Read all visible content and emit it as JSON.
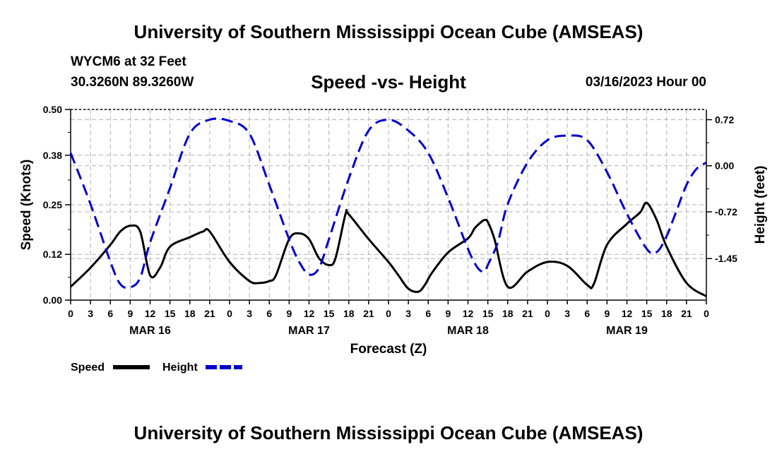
{
  "header": {
    "title_top": "University of Southern Mississippi Ocean Cube (AMSEAS)",
    "station": "WYCM6 at 32 Feet",
    "coords": "30.3260N  89.3260W",
    "subtitle": "Speed -vs- Height",
    "datetime": "03/16/2023 Hour 00",
    "title_bottom": "University of Southern Mississippi Ocean Cube (AMSEAS)"
  },
  "chart_data": {
    "type": "line",
    "title": "Speed -vs- Height",
    "xlabel": "Forecast (Z)",
    "ylabel": "Speed (Knots)",
    "y2label": "Height (feet)",
    "xlim": [
      0,
      96
    ],
    "ylim": [
      0,
      0.5
    ],
    "y2lim": [
      -2.1,
      0.88
    ],
    "grid": true,
    "x_ticks": [
      0,
      3,
      6,
      9,
      12,
      15,
      18,
      21,
      24,
      27,
      30,
      33,
      36,
      39,
      42,
      45,
      48,
      51,
      54,
      57,
      60,
      63,
      66,
      69,
      72,
      75,
      78,
      81,
      84,
      87,
      90,
      93,
      96
    ],
    "x_tick_labels": [
      "0",
      "3",
      "6",
      "9",
      "12",
      "15",
      "18",
      "21",
      "0",
      "3",
      "6",
      "9",
      "12",
      "15",
      "18",
      "21",
      "0",
      "3",
      "6",
      "9",
      "12",
      "15",
      "18",
      "21",
      "0",
      "3",
      "6",
      "9",
      "12",
      "15",
      "18",
      "21",
      "0"
    ],
    "day_labels": [
      {
        "x": 12,
        "label": "MAR 16"
      },
      {
        "x": 36,
        "label": "MAR 17"
      },
      {
        "x": 60,
        "label": "MAR 18"
      },
      {
        "x": 84,
        "label": "MAR 19"
      }
    ],
    "y_ticks": [
      0.0,
      0.12,
      0.25,
      0.38,
      0.5
    ],
    "y_tick_labels": [
      "0.00",
      "0.12",
      "0.25",
      "0.38",
      "0.50"
    ],
    "y2_ticks": [
      0.72,
      0.0,
      -0.72,
      -1.45
    ],
    "y2_tick_labels": [
      "0.72",
      "0.00",
      "-0.72",
      "-1.45"
    ],
    "legend": "bottom-left",
    "series": [
      {
        "name": "Speed",
        "axis": "left",
        "color": "#000000",
        "style": "solid",
        "x": [
          0,
          3,
          6,
          7.5,
          9,
          10.5,
          12,
          13.5,
          15,
          18,
          20,
          21,
          24,
          27,
          28.5,
          30,
          31,
          33,
          34.5,
          36,
          37.5,
          39,
          40,
          41.5,
          42,
          45,
          48,
          49.5,
          51,
          52.5,
          53.5,
          54.5,
          57,
          60,
          61,
          62,
          62.5,
          63,
          64,
          66,
          69,
          72,
          75,
          78,
          79,
          81,
          84,
          86,
          87,
          88.5,
          90,
          93,
          96
        ],
        "values": [
          0.035,
          0.085,
          0.145,
          0.18,
          0.195,
          0.18,
          0.065,
          0.085,
          0.14,
          0.165,
          0.18,
          0.18,
          0.1,
          0.05,
          0.045,
          0.05,
          0.065,
          0.16,
          0.175,
          0.16,
          0.11,
          0.092,
          0.11,
          0.225,
          0.225,
          0.16,
          0.1,
          0.065,
          0.03,
          0.022,
          0.04,
          0.07,
          0.125,
          0.162,
          0.188,
          0.205,
          0.21,
          0.205,
          0.16,
          0.035,
          0.075,
          0.1,
          0.09,
          0.04,
          0.042,
          0.145,
          0.2,
          0.23,
          0.255,
          0.21,
          0.14,
          0.045,
          0.01
        ]
      },
      {
        "name": "Height",
        "axis": "right",
        "color": "#0000cc",
        "style": "dashed",
        "x": [
          0,
          3,
          6,
          7.5,
          9,
          10.5,
          12,
          15,
          18,
          21,
          24,
          27,
          30,
          33,
          34.5,
          36,
          37.5,
          39,
          42,
          45,
          48,
          51,
          54,
          57,
          60,
          61.5,
          62.5,
          63,
          64.5,
          66,
          69,
          72,
          75,
          78,
          81,
          84,
          87,
          88.5,
          90,
          91.5,
          93,
          94.5,
          96
        ],
        "values": [
          0.2,
          -0.6,
          -1.5,
          -1.85,
          -1.9,
          -1.75,
          -1.2,
          -0.35,
          0.5,
          0.72,
          0.7,
          0.5,
          -0.3,
          -1.15,
          -1.5,
          -1.7,
          -1.6,
          -1.15,
          -0.2,
          0.55,
          0.72,
          0.55,
          0.2,
          -0.5,
          -1.3,
          -1.6,
          -1.65,
          -1.55,
          -1.2,
          -0.6,
          0.05,
          0.4,
          0.47,
          0.4,
          -0.1,
          -0.75,
          -1.3,
          -1.35,
          -1.1,
          -0.7,
          -0.3,
          -0.05,
          0.05
        ]
      }
    ]
  }
}
